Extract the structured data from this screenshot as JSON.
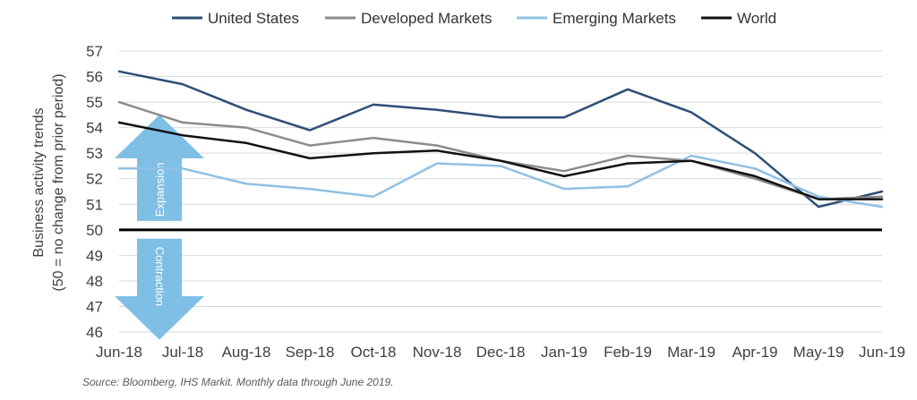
{
  "chart_data": {
    "type": "line",
    "title": "",
    "xlabel": "",
    "ylabel": [
      "Business activity trends",
      "(50 = no change from prior period)"
    ],
    "categories": [
      "Jun-18",
      "Jul-18",
      "Aug-18",
      "Sep-18",
      "Oct-18",
      "Nov-18",
      "Dec-18",
      "Jan-19",
      "Feb-19",
      "Mar-19",
      "Apr-19",
      "May-19",
      "Jun-19"
    ],
    "ylim": [
      46,
      57
    ],
    "yticks": [
      46,
      47,
      48,
      49,
      50,
      51,
      52,
      53,
      54,
      55,
      56,
      57
    ],
    "grid": true,
    "legend": "top",
    "reference_line": 50,
    "series": [
      {
        "name": "United States",
        "color": "#2e4e76",
        "values": [
          56.2,
          55.7,
          54.7,
          53.9,
          54.9,
          54.7,
          54.4,
          54.4,
          55.5,
          54.6,
          53.0,
          50.9,
          51.5
        ]
      },
      {
        "name": "Developed Markets",
        "color": "#8c8c8c",
        "values": [
          55.0,
          54.2,
          54.0,
          53.3,
          53.6,
          53.3,
          52.7,
          52.3,
          52.9,
          52.7,
          52.0,
          51.2,
          51.3
        ]
      },
      {
        "name": "Emerging Markets",
        "color": "#8fc1e3",
        "values": [
          52.4,
          52.4,
          51.8,
          51.6,
          51.3,
          52.6,
          52.5,
          51.6,
          51.7,
          52.9,
          52.4,
          51.3,
          50.9
        ]
      },
      {
        "name": "World",
        "color": "#111111",
        "values": [
          54.2,
          53.7,
          53.4,
          52.8,
          53.0,
          53.1,
          52.7,
          52.1,
          52.6,
          52.7,
          52.1,
          51.2,
          51.2
        ]
      }
    ],
    "annotations": {
      "expansion": "Expansion",
      "contraction": "Contraction",
      "arrow_color": "#7fbfe6"
    }
  },
  "source": "Source: Bloomberg, IHS Markit. Monthly data through June 2019."
}
